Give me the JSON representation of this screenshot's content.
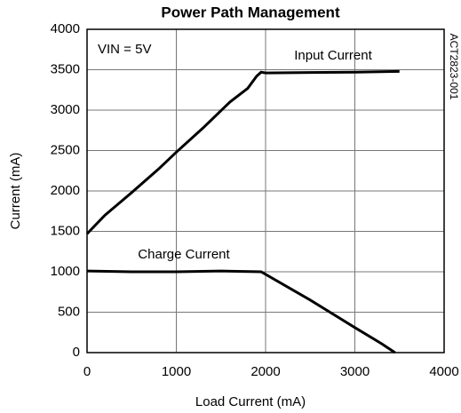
{
  "chart_data": {
    "type": "line",
    "title": "Power Path Management",
    "x_label": "Load Current (mA)",
    "y_label": "Current (mA)",
    "annotations": [
      "VIN = 5V",
      "ACT2823-001"
    ],
    "xlim": [
      0,
      4000
    ],
    "xticks": [
      0,
      1000,
      2000,
      3000,
      4000
    ],
    "ylim": [
      0,
      4000
    ],
    "yticks": [
      0,
      500,
      1000,
      1500,
      2000,
      2500,
      3000,
      3500,
      4000
    ],
    "grid": true,
    "series": [
      {
        "name": "Input Current",
        "color": "#000000",
        "x": [
          0,
          200,
          500,
          800,
          1000,
          1300,
          1600,
          1800,
          1900,
          1950,
          2000,
          2500,
          3000,
          3500
        ],
        "values": [
          1470,
          1700,
          1980,
          2270,
          2480,
          2780,
          3100,
          3270,
          3420,
          3470,
          3460,
          3465,
          3470,
          3480
        ]
      },
      {
        "name": "Charge Current",
        "color": "#000000",
        "x": [
          0,
          500,
          1000,
          1500,
          1950,
          2500,
          3000,
          3300,
          3450
        ],
        "values": [
          1010,
          1000,
          1000,
          1010,
          1000,
          650,
          310,
          110,
          0
        ]
      }
    ]
  }
}
